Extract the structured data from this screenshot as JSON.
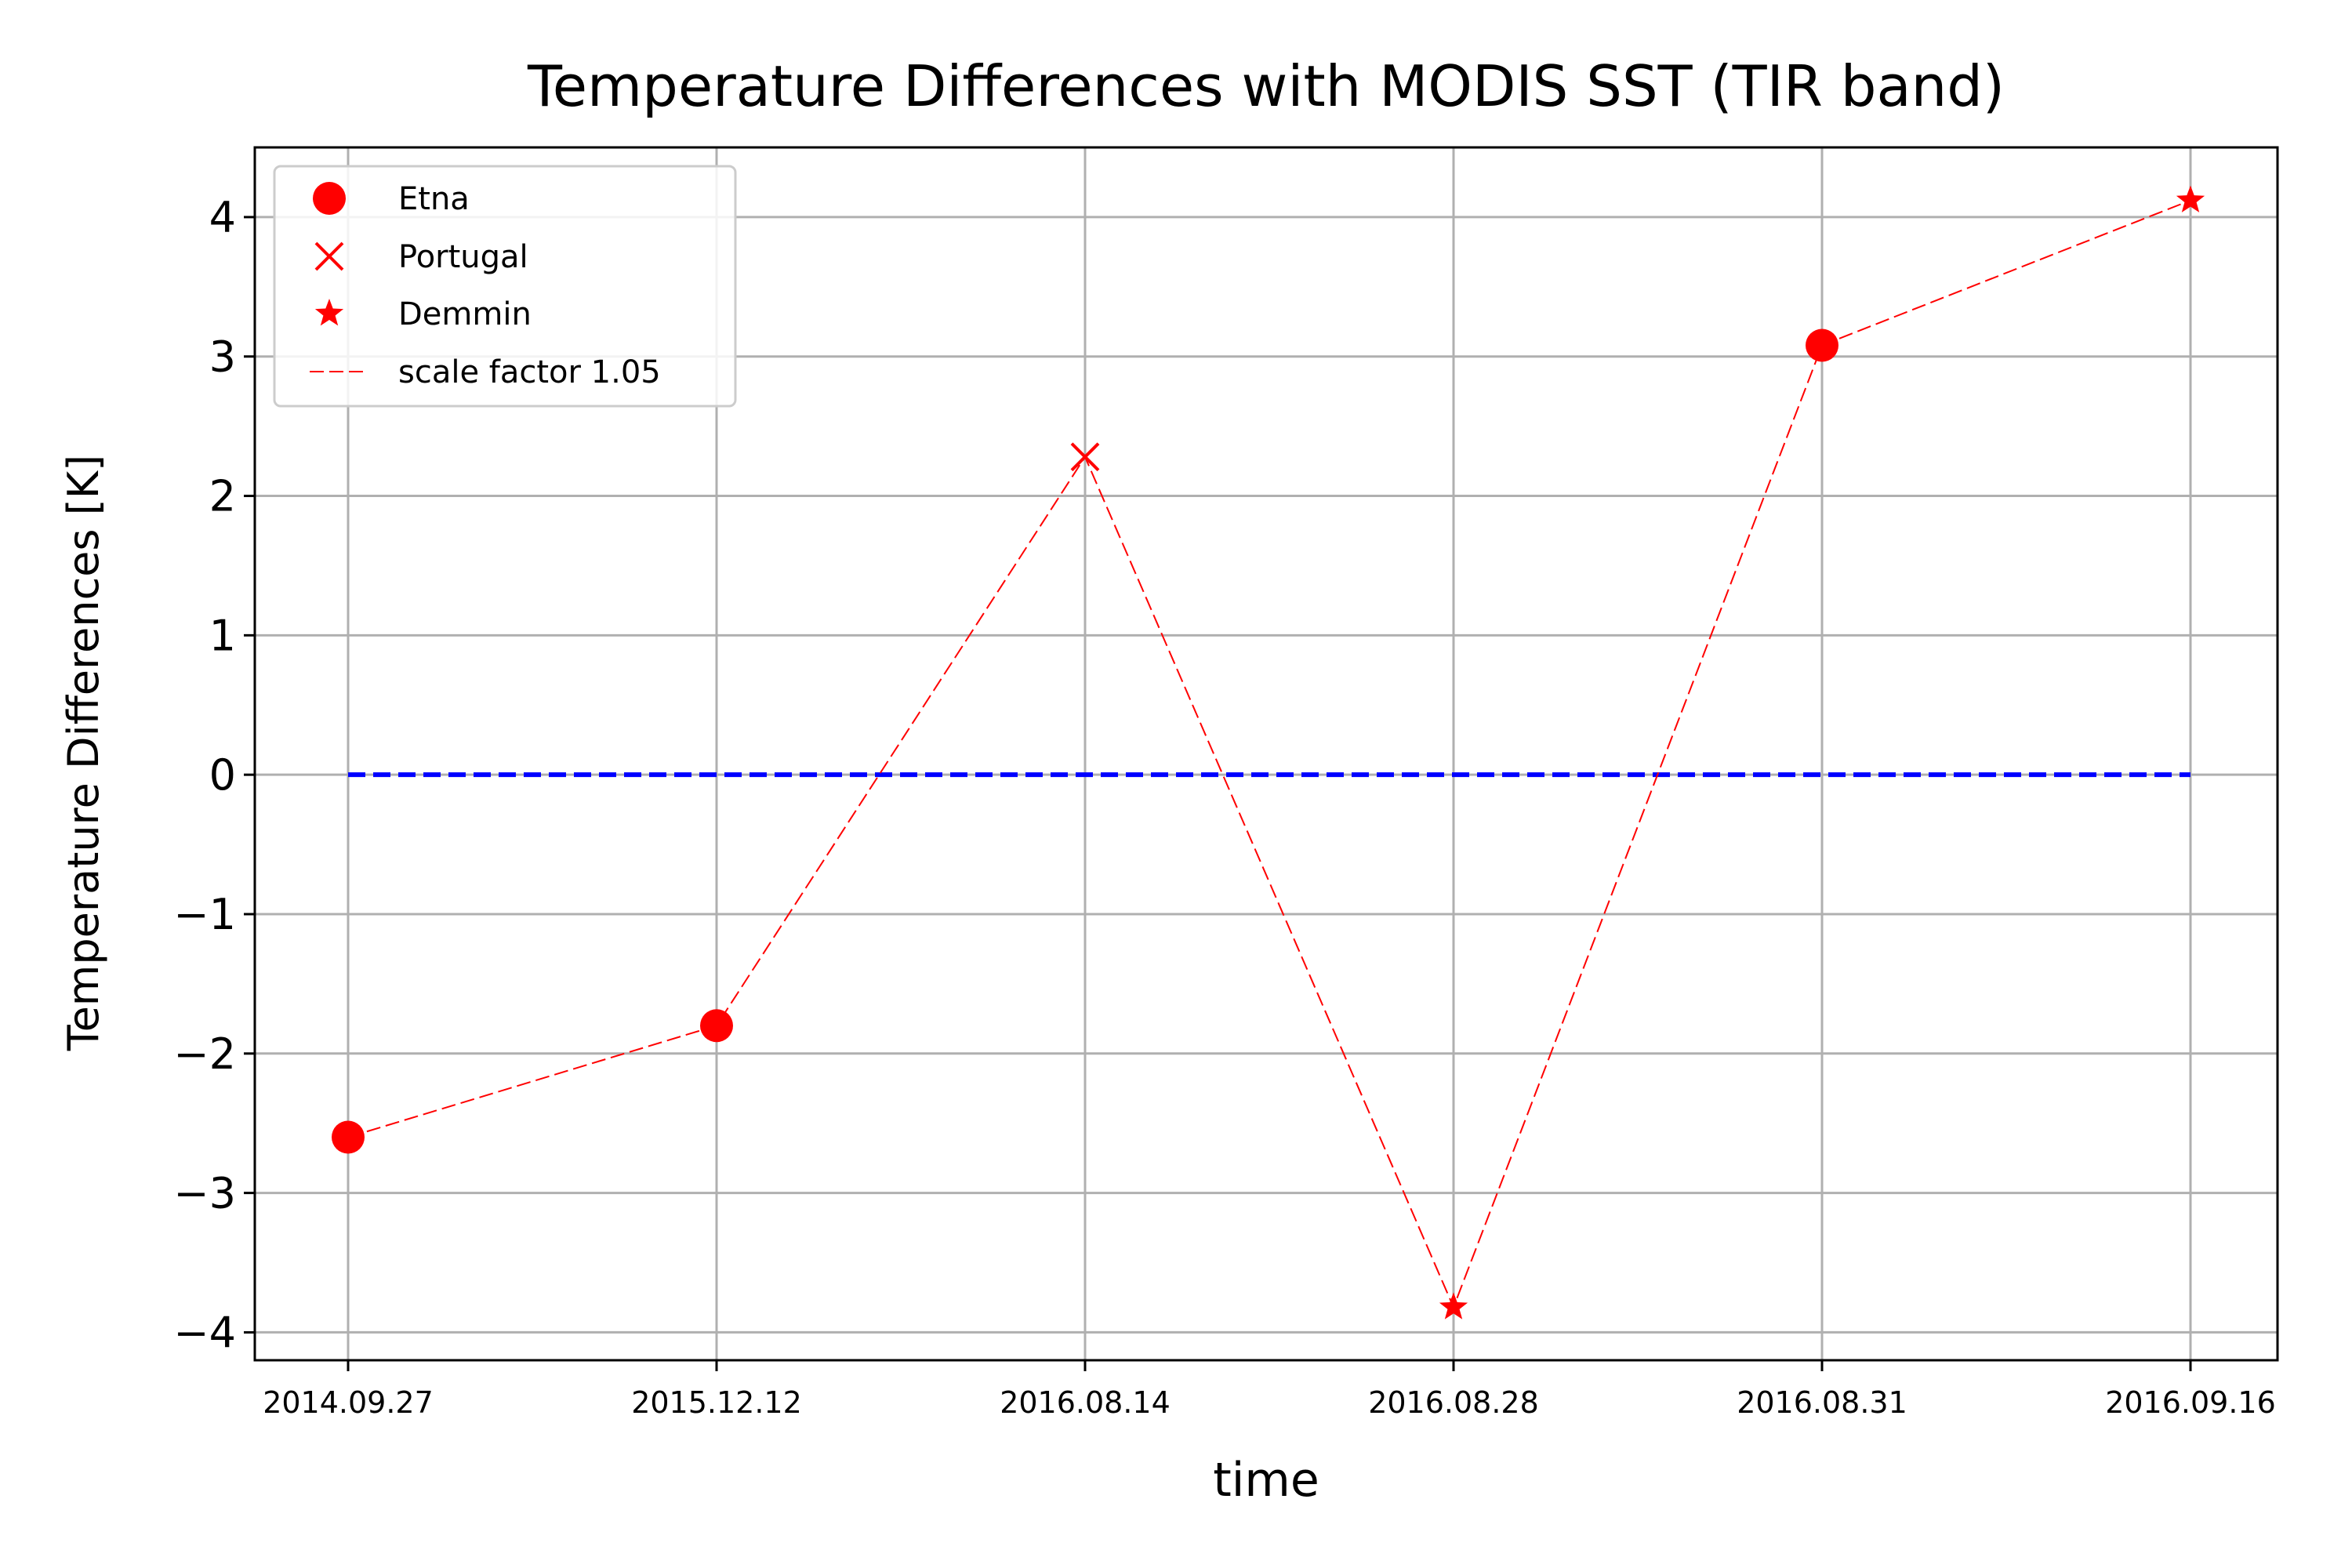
{
  "chart_data": {
    "type": "line",
    "title": "Temperature Differences with MODIS SST (TIR band)",
    "xlabel": "time",
    "ylabel": "Temperature Differences [K]",
    "categories": [
      "2014.09.27",
      "2015.12.12",
      "2016.08.14",
      "2016.08.28",
      "2016.08.31",
      "2016.09.16"
    ],
    "y_ticks": [
      -4,
      -3,
      -2,
      -1,
      0,
      1,
      2,
      3,
      4
    ],
    "y_tick_labels": [
      "−4",
      "−3",
      "−2",
      "−1",
      "0",
      "1",
      "2",
      "3",
      "4"
    ],
    "ylim": [
      -4.2,
      4.5
    ],
    "grid": true,
    "legend_position": "top-left",
    "series": [
      {
        "name": "scale factor 1.05",
        "color": "#ff0000",
        "style": "dashed",
        "values": [
          -2.6,
          -1.8,
          2.28,
          -3.82,
          3.08,
          4.12
        ]
      }
    ],
    "points": [
      {
        "index": 0,
        "site": "Etna",
        "value": -2.6
      },
      {
        "index": 1,
        "site": "Etna",
        "value": -1.8
      },
      {
        "index": 2,
        "site": "Portugal",
        "value": 2.28
      },
      {
        "index": 3,
        "site": "Demmin",
        "value": -3.82
      },
      {
        "index": 4,
        "site": "Etna",
        "value": 3.08
      },
      {
        "index": 5,
        "site": "Demmin",
        "value": 4.12
      }
    ],
    "markers": {
      "Etna": "circle",
      "Portugal": "x",
      "Demmin": "star"
    },
    "reference_line": {
      "value": 0,
      "color": "#0000ff",
      "style": "dashed"
    },
    "legend": [
      {
        "label": "Etna",
        "marker": "circle"
      },
      {
        "label": "Portugal",
        "marker": "x"
      },
      {
        "label": "Demmin",
        "marker": "star"
      },
      {
        "label": "scale factor 1.05",
        "marker": "dashed-line"
      }
    ]
  }
}
